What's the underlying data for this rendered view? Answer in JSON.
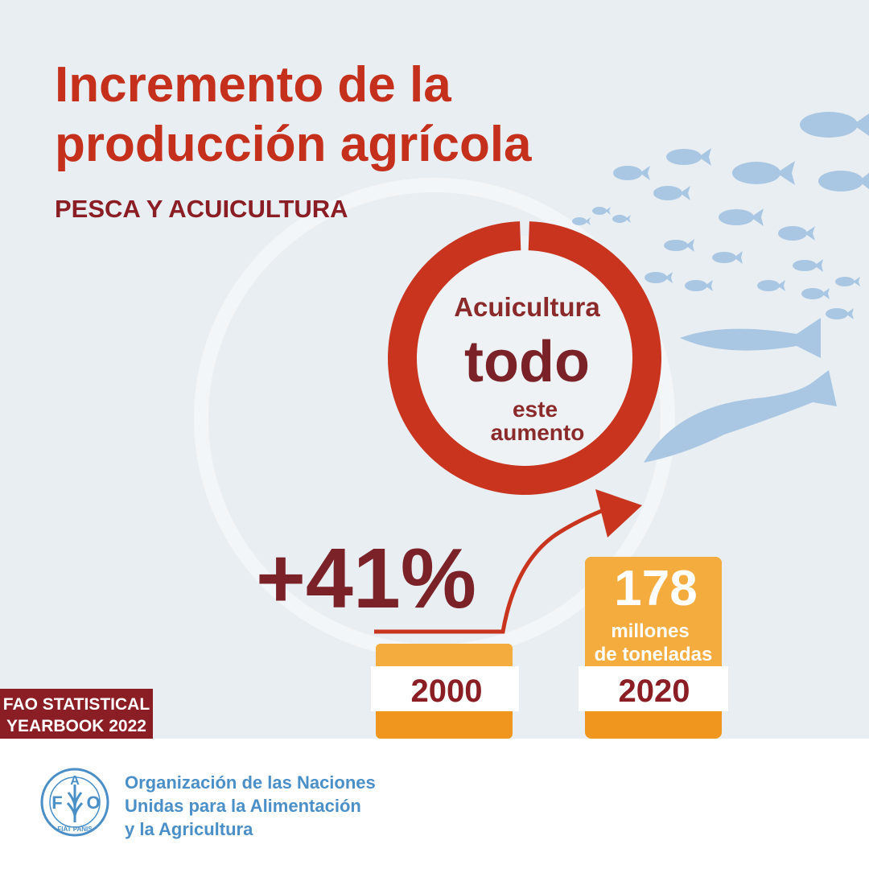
{
  "header": {
    "title": [
      "Incremento de la",
      "producción agrícola"
    ],
    "subtitle": "PESCA Y ACUICULTURA"
  },
  "ring": {
    "lines": [
      "Acuicultura",
      "todo",
      "este",
      "aumento"
    ]
  },
  "growth": "+41%",
  "bars": [
    {
      "year": "2000"
    },
    {
      "year": "2020",
      "value": "178",
      "unit": [
        "millones",
        "de toneladas"
      ]
    }
  ],
  "badge": [
    "FAO STATISTICAL",
    "YEARBOOK 2022"
  ],
  "footer": {
    "logo": {
      "letters": [
        "F",
        "A",
        "O"
      ],
      "motto": "FIAT PANIS"
    },
    "organization": [
      "Organización de las Naciones",
      "Unidas para la Alimentación",
      "y la Agricultura"
    ]
  }
}
